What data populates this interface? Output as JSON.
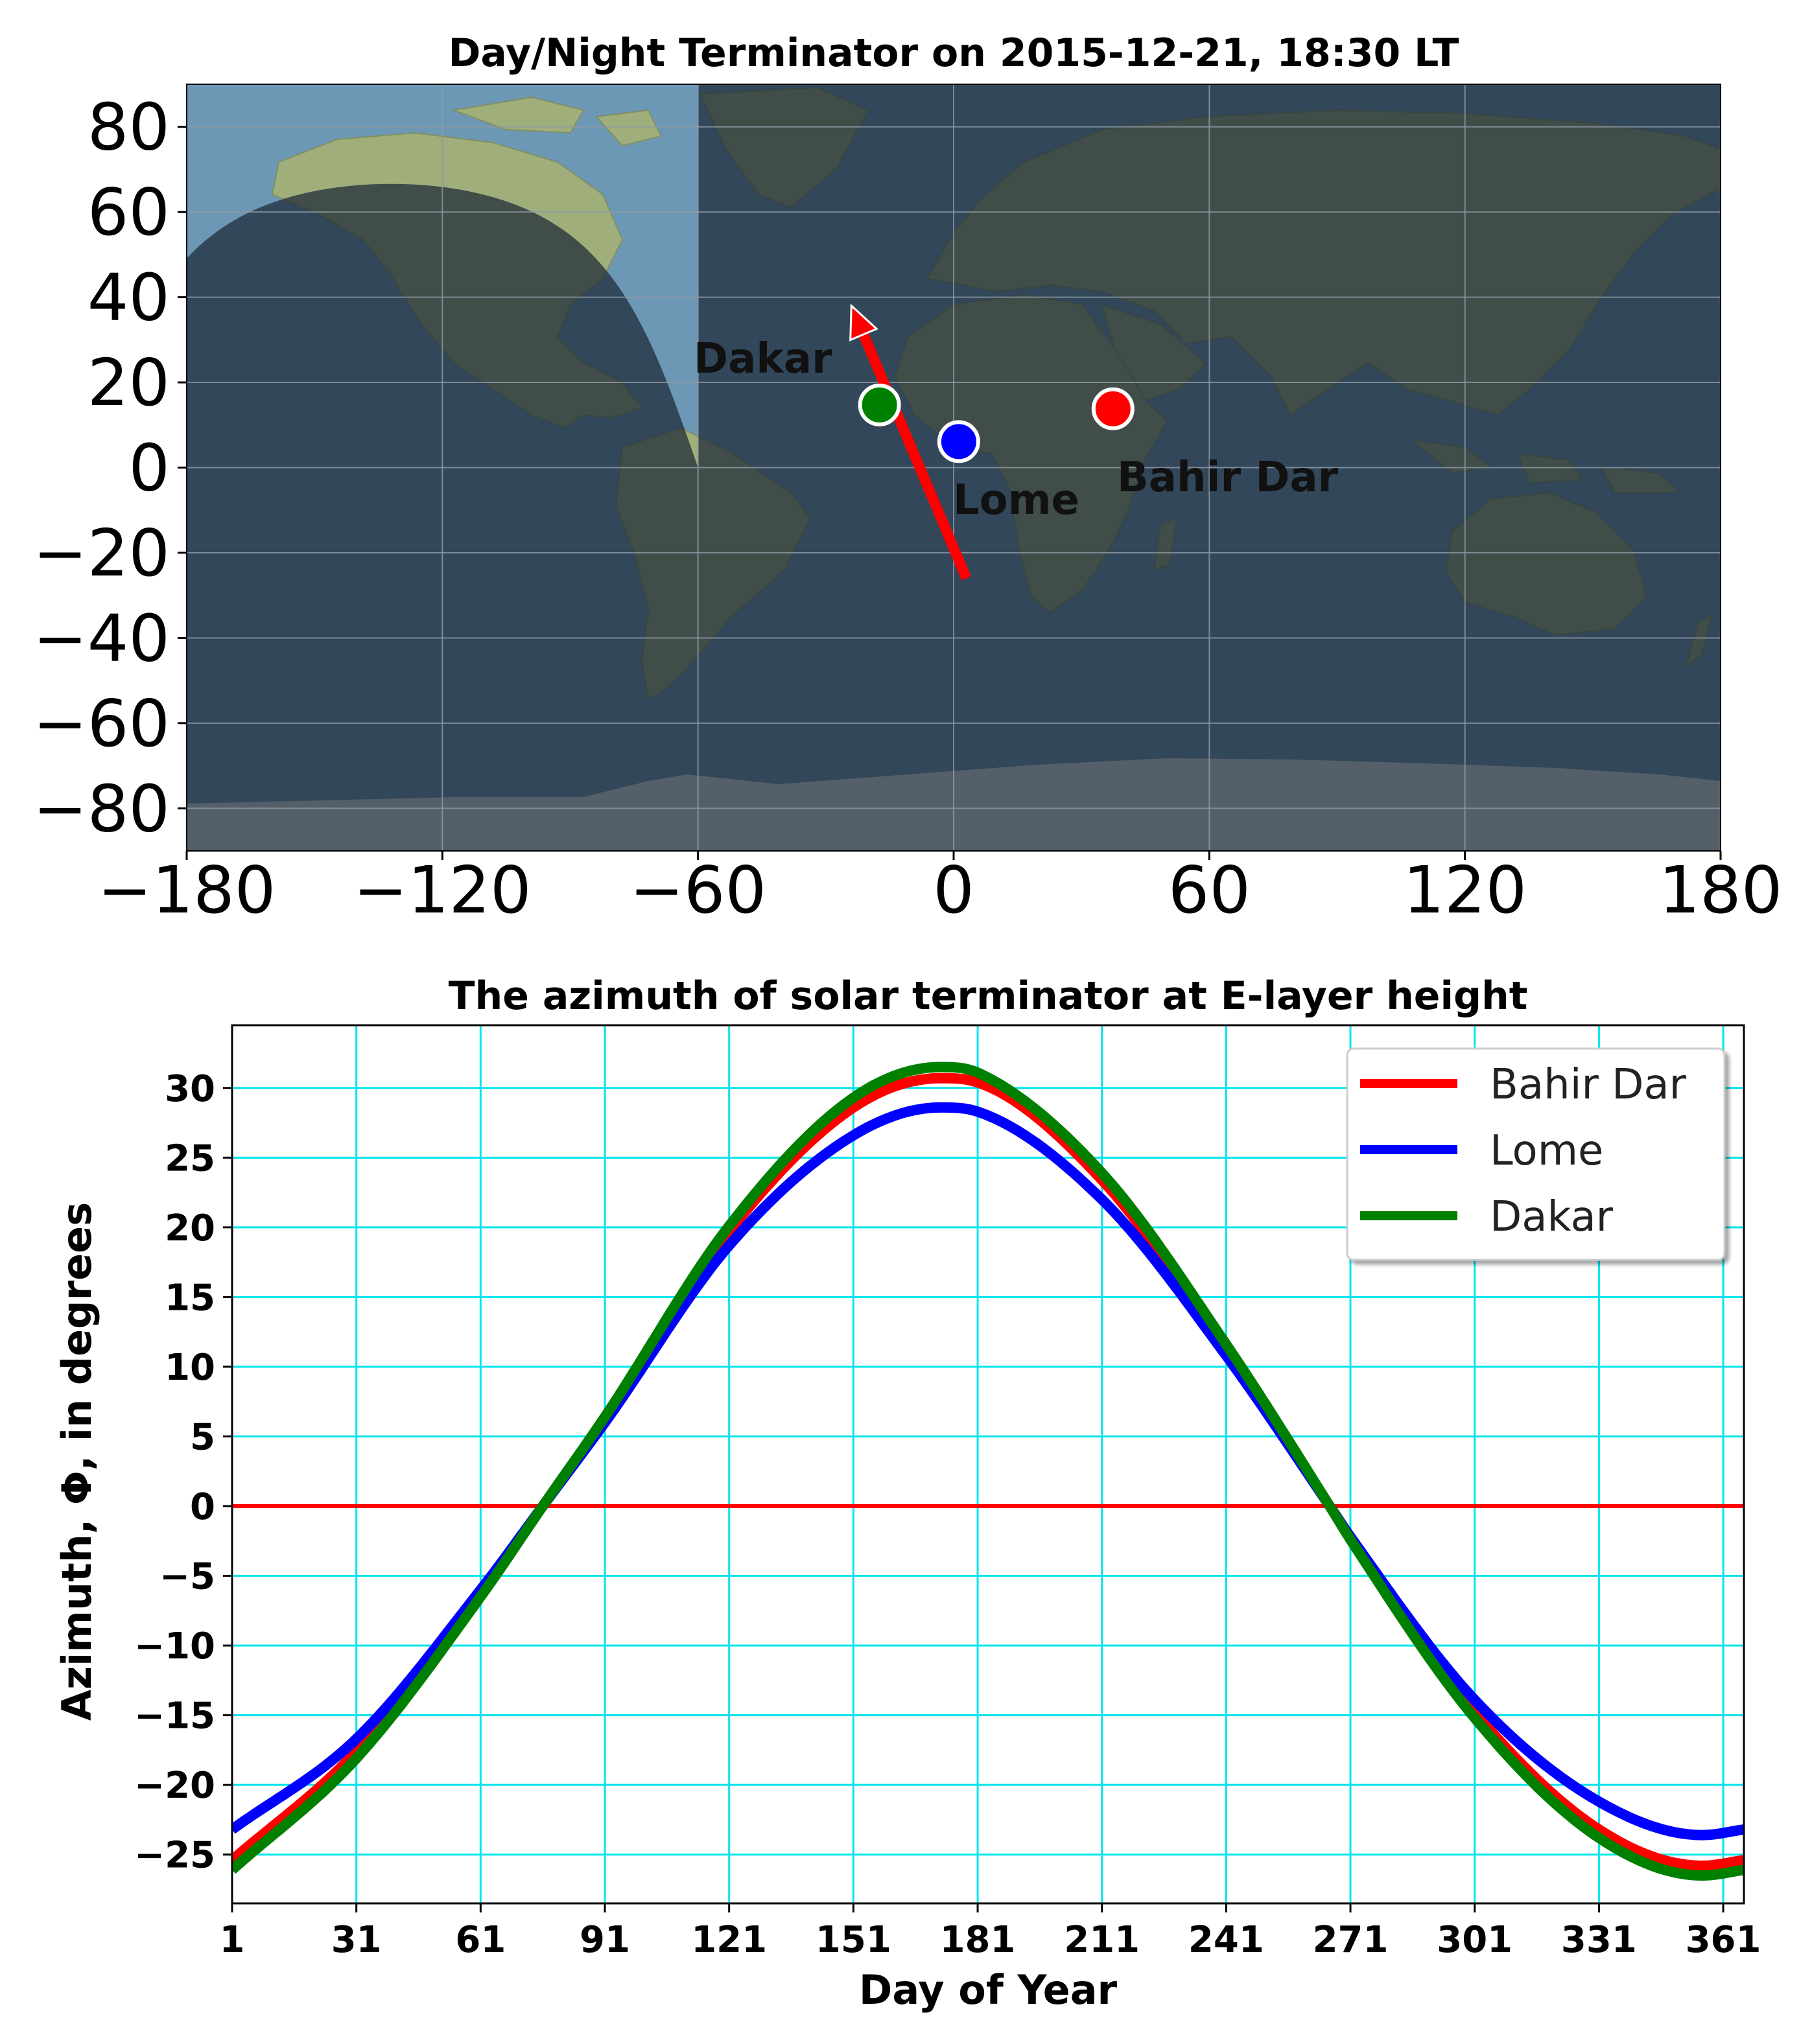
{
  "map": {
    "title": "Day/Night Terminator on 2015-12-21, 18:30 LT",
    "xlim": [
      -180,
      180
    ],
    "ylim": [
      -90,
      90
    ],
    "xticks": [
      -180,
      -120,
      -60,
      0,
      60,
      120,
      180
    ],
    "yticks": [
      80,
      60,
      40,
      20,
      0,
      -20,
      -40,
      -60,
      -80
    ],
    "xtick_labels": [
      "−180",
      "−120",
      "−60",
      "0",
      "60",
      "120",
      "180"
    ],
    "ytick_labels": [
      "80",
      "60",
      "40",
      "20",
      "0",
      "−20",
      "−40",
      "−60",
      "−80"
    ],
    "terminator_day_bounds": {
      "lon_east": -60,
      "lon_west": -204,
      "subsolar_lat": -23.4
    },
    "arrow": {
      "from": [
        3,
        -26
      ],
      "to": [
        -24,
        38
      ],
      "color": "#ff0000"
    },
    "cities": [
      {
        "name": "Dakar",
        "lon": -17.4,
        "lat": 14.7,
        "color": "#008000",
        "label": "Dakar"
      },
      {
        "name": "Lome",
        "lon": 1.2,
        "lat": 6.1,
        "color": "#0000ff",
        "label": "Lome"
      },
      {
        "name": "Bahir Dar",
        "lon": 37.4,
        "lat": 13.8,
        "color": "#ff0000",
        "label": "Bahir Dar"
      }
    ],
    "colors": {
      "ocean": "#6d98b5",
      "land": "#9fae7a",
      "ice": "#e8ecef",
      "night": "#1c2836",
      "grid": "#8e9aa5"
    }
  },
  "chart_data": {
    "type": "line",
    "title": "The azimuth of solar terminator at E-layer height",
    "xlabel": "Day of Year",
    "ylabel": "Azimuth, Φ,  in degrees",
    "xlim": [
      1,
      366
    ],
    "ylim": [
      -28.5,
      34.5
    ],
    "xticks": [
      1,
      31,
      61,
      91,
      121,
      151,
      181,
      211,
      241,
      271,
      301,
      331,
      361
    ],
    "xtick_labels": [
      "1",
      "31",
      "61",
      "91",
      "121",
      "151",
      "181",
      "211",
      "241",
      "271",
      "301",
      "331",
      "361"
    ],
    "yticks": [
      30,
      25,
      20,
      15,
      10,
      5,
      0,
      -5,
      -10,
      -15,
      -20,
      -25
    ],
    "ytick_labels": [
      "30",
      "25",
      "20",
      "15",
      "10",
      "5",
      "0",
      "−5",
      "−10",
      "−15",
      "−20",
      "−25"
    ],
    "grid": true,
    "grid_color": "#00e5ee",
    "zero_line_color": "#ff0000",
    "legend_position": "top-right",
    "x": [
      1,
      31,
      61,
      76,
      91,
      121,
      151,
      172,
      181,
      211,
      241,
      266,
      271,
      301,
      331,
      356,
      366
    ],
    "series": [
      {
        "name": "Bahir Dar",
        "color": "#ff0000",
        "values": [
          -25.4,
          -17.6,
          -6.3,
          0,
          6.2,
          19.7,
          28.6,
          30.7,
          30.4,
          23.4,
          11.3,
          0,
          -2.3,
          -14.8,
          -23.2,
          -25.8,
          -25.4
        ]
      },
      {
        "name": "Lome",
        "color": "#0000ff",
        "values": [
          -23.2,
          -16.7,
          -6.0,
          0,
          6.0,
          18.7,
          26.6,
          28.6,
          28.3,
          22.0,
          10.8,
          0,
          -2.2,
          -13.9,
          -21.2,
          -23.6,
          -23.2
        ]
      },
      {
        "name": "Dakar",
        "color": "#008000",
        "values": [
          -26.1,
          -18.1,
          -6.5,
          0,
          6.4,
          20.1,
          29.3,
          31.5,
          31.1,
          23.9,
          11.6,
          0,
          -2.4,
          -15.2,
          -23.8,
          -26.5,
          -26.1
        ]
      }
    ]
  }
}
